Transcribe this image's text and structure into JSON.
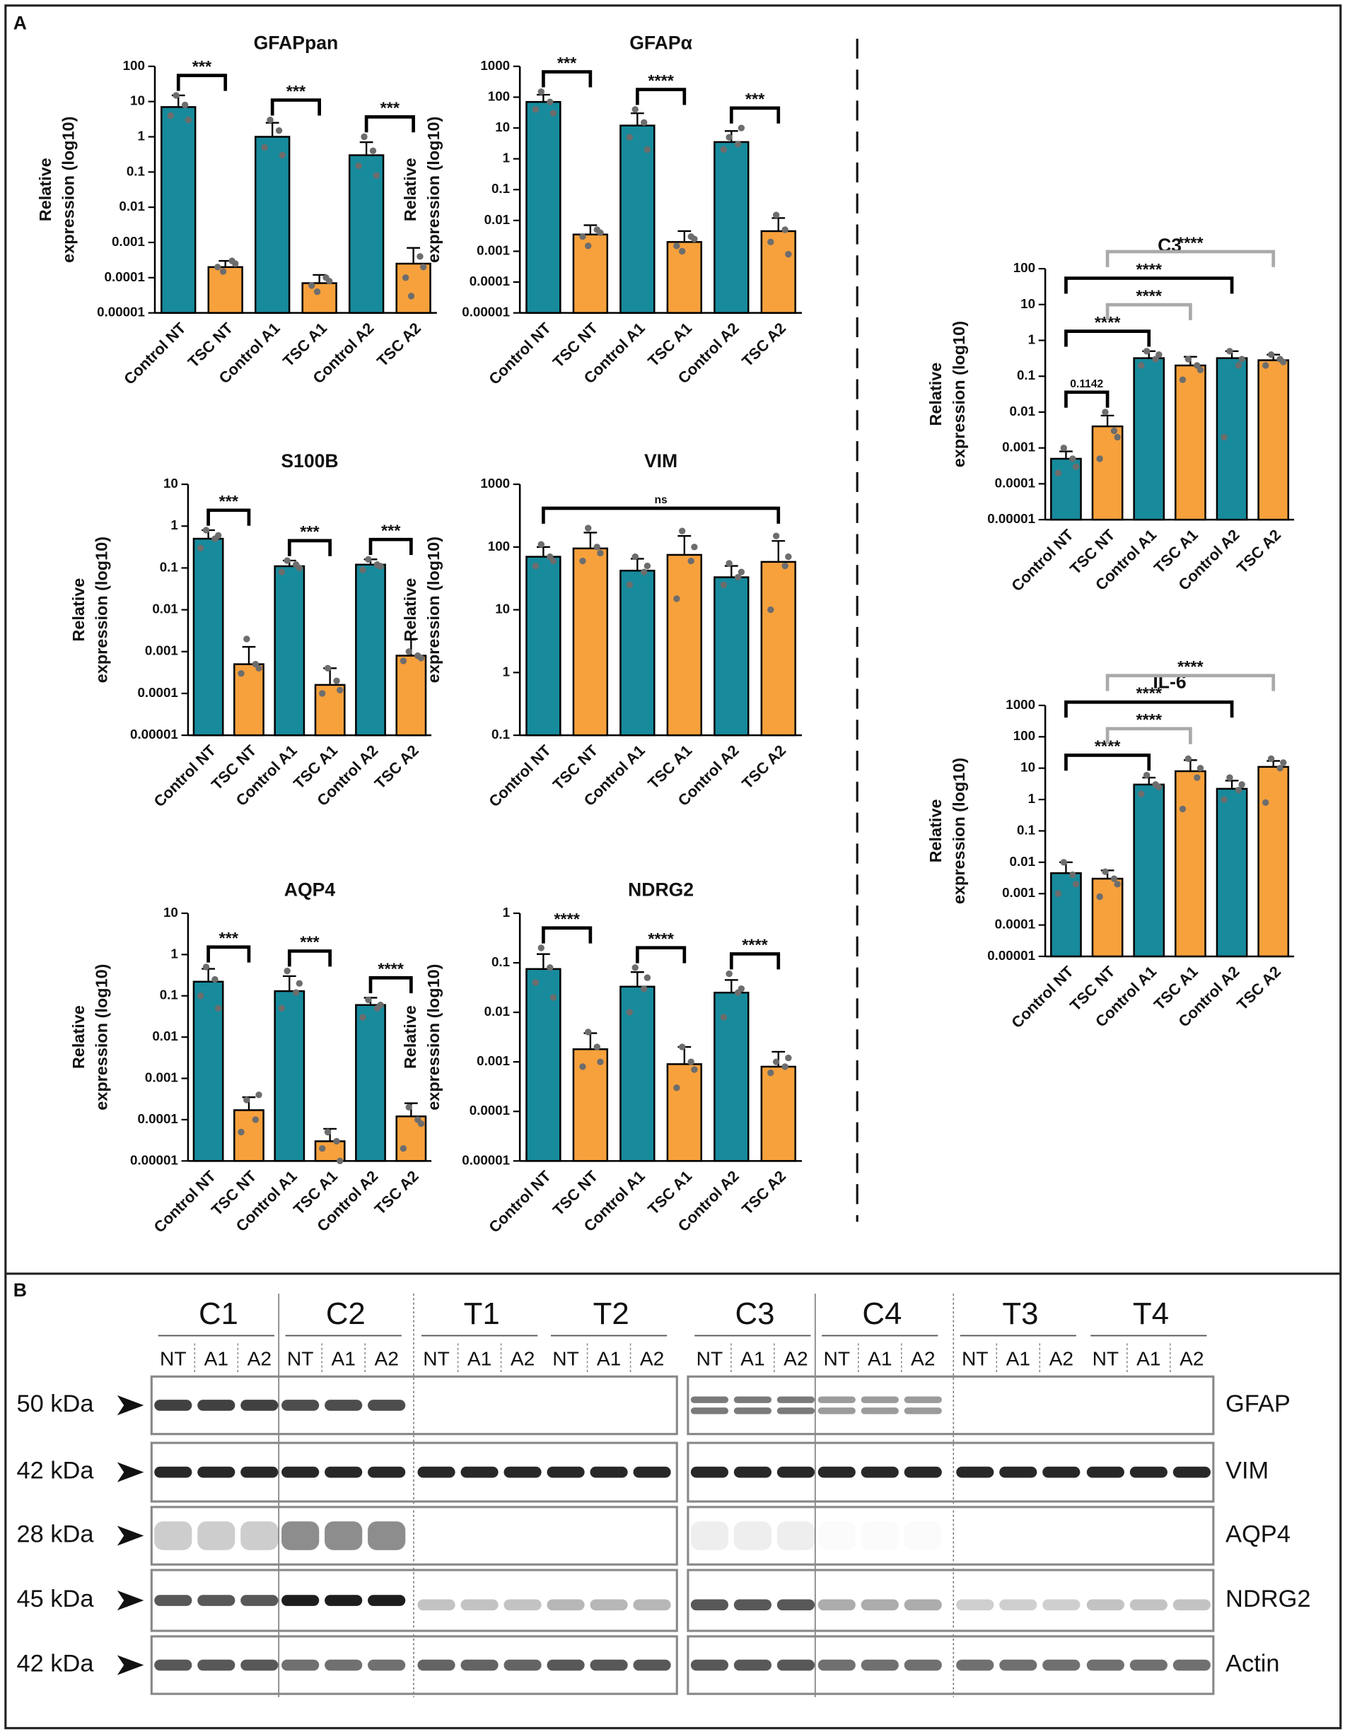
{
  "panel_labels": [
    "A",
    "B"
  ],
  "chart_data": [
    {
      "type": "bar",
      "title": "GFAPpan",
      "ylabel": [
        "Relative",
        "expression (log10)"
      ],
      "yscale": "log",
      "categories": [
        "Control NT",
        "TSC NT",
        "Control A1",
        "TSC A1",
        "Control A2",
        "TSC A2"
      ],
      "values": [
        7,
        0.0002,
        1,
        7e-05,
        0.3,
        0.00025
      ],
      "error_upper": [
        15,
        0.0003,
        2.5,
        0.00012,
        0.7,
        0.0007
      ],
      "points": [
        [
          4,
          8,
          15,
          3
        ],
        [
          0.0002,
          0.0003,
          0.00015,
          0.00025
        ],
        [
          0.5,
          1.5,
          3,
          0.3
        ],
        [
          6e-05,
          0.0001,
          4e-05,
          8e-05
        ],
        [
          0.15,
          0.4,
          1,
          0.08
        ],
        [
          0.0001,
          0.0004,
          3e-05,
          0.0002
        ]
      ],
      "colors": [
        "#178a9c",
        "#f7a13d",
        "#178a9c",
        "#f7a13d",
        "#178a9c",
        "#f7a13d"
      ],
      "ylim": [
        1e-05,
        100
      ],
      "yticks": [
        1e-05,
        0.0001,
        0.001,
        0.01,
        0.1,
        1,
        10,
        100
      ],
      "comparisons": [
        {
          "from": 0,
          "to": 1,
          "label": "***",
          "color": "#000"
        },
        {
          "from": 2,
          "to": 3,
          "label": "***",
          "color": "#000"
        },
        {
          "from": 4,
          "to": 5,
          "label": "***",
          "color": "#000"
        }
      ]
    },
    {
      "type": "bar",
      "title": "GFAPα",
      "ylabel": [
        "Relative",
        "expression (log10)"
      ],
      "yscale": "log",
      "categories": [
        "Control NT",
        "TSC NT",
        "Control A1",
        "TSC A1",
        "Control A2",
        "TSC A2"
      ],
      "values": [
        70,
        0.0035,
        12,
        0.002,
        3.5,
        0.0045
      ],
      "error_upper": [
        120,
        0.007,
        30,
        0.0045,
        8,
        0.012
      ],
      "points": [
        [
          40,
          70,
          150,
          30
        ],
        [
          0.003,
          0.005,
          0.0015,
          0.004
        ],
        [
          5,
          15,
          40,
          2
        ],
        [
          0.0015,
          0.003,
          0.001,
          0.0025
        ],
        [
          2,
          3,
          5,
          10
        ],
        [
          0.002,
          0.005,
          0.015,
          0.0008
        ]
      ],
      "colors": [
        "#178a9c",
        "#f7a13d",
        "#178a9c",
        "#f7a13d",
        "#178a9c",
        "#f7a13d"
      ],
      "ylim": [
        1e-05,
        1000
      ],
      "yticks": [
        1e-05,
        0.0001,
        0.001,
        0.01,
        0.1,
        1,
        10,
        100,
        1000
      ],
      "comparisons": [
        {
          "from": 0,
          "to": 1,
          "label": "***",
          "color": "#000"
        },
        {
          "from": 2,
          "to": 3,
          "label": "****",
          "color": "#000"
        },
        {
          "from": 4,
          "to": 5,
          "label": "***",
          "color": "#000"
        }
      ]
    },
    {
      "type": "bar",
      "title": "S100B",
      "ylabel": [
        "Relative",
        "expression (log10)"
      ],
      "yscale": "log",
      "categories": [
        "Control NT",
        "TSC NT",
        "Control A1",
        "TSC A1",
        "Control A2",
        "TSC A2"
      ],
      "values": [
        0.5,
        0.0005,
        0.11,
        0.00016,
        0.12,
        0.0008
      ],
      "error_upper": [
        0.8,
        0.0013,
        0.15,
        0.0004,
        0.16,
        0.002
      ],
      "points": [
        [
          0.3,
          0.5,
          0.8,
          0.6
        ],
        [
          0.0003,
          0.0005,
          0.002,
          0.0004
        ],
        [
          0.08,
          0.12,
          0.15,
          0.1
        ],
        [
          0.0001,
          0.0002,
          0.0004,
          0.00012
        ],
        [
          0.09,
          0.12,
          0.16,
          0.11
        ],
        [
          0.0006,
          0.0008,
          0.001,
          0.0007
        ]
      ],
      "colors": [
        "#178a9c",
        "#f7a13d",
        "#178a9c",
        "#f7a13d",
        "#178a9c",
        "#f7a13d"
      ],
      "ylim": [
        1e-05,
        10
      ],
      "yticks": [
        1e-05,
        0.0001,
        0.001,
        0.01,
        0.1,
        1,
        10
      ],
      "comparisons": [
        {
          "from": 0,
          "to": 1,
          "label": "***",
          "color": "#000"
        },
        {
          "from": 2,
          "to": 3,
          "label": "***",
          "color": "#000"
        },
        {
          "from": 4,
          "to": 5,
          "label": "***",
          "color": "#000"
        }
      ]
    },
    {
      "type": "bar",
      "title": "VIM",
      "ylabel": [
        "Relative",
        "expression (log10)"
      ],
      "yscale": "log",
      "categories": [
        "Control NT",
        "TSC NT",
        "Control A1",
        "TSC A1",
        "Control A2",
        "TSC A2"
      ],
      "values": [
        70,
        95,
        42,
        75,
        33,
        58
      ],
      "error_upper": [
        100,
        170,
        65,
        150,
        50,
        125
      ],
      "points": [
        [
          50,
          70,
          110,
          60
        ],
        [
          60,
          100,
          200,
          80
        ],
        [
          25,
          40,
          70,
          50
        ],
        [
          15,
          60,
          180,
          100
        ],
        [
          25,
          33,
          55,
          40
        ],
        [
          10,
          50,
          150,
          70
        ]
      ],
      "colors": [
        "#178a9c",
        "#f7a13d",
        "#178a9c",
        "#f7a13d",
        "#178a9c",
        "#f7a13d"
      ],
      "ylim": [
        0.1,
        1000
      ],
      "yticks": [
        0.1,
        1,
        10,
        100,
        1000
      ],
      "comparisons": [
        {
          "from": 0,
          "to": 5,
          "label": "ns",
          "color": "#000"
        }
      ]
    },
    {
      "type": "bar",
      "title": "AQP4",
      "ylabel": [
        "Relative",
        "expression (log10)"
      ],
      "yscale": "log",
      "categories": [
        "Control NT",
        "TSC NT",
        "Control A1",
        "TSC A1",
        "Control A2",
        "TSC A2"
      ],
      "values": [
        0.22,
        0.00017,
        0.13,
        3e-05,
        0.06,
        0.00012
      ],
      "error_upper": [
        0.45,
        0.00035,
        0.3,
        6e-05,
        0.09,
        0.00025
      ],
      "points": [
        [
          0.1,
          0.25,
          0.5,
          0.05
        ],
        [
          5e-05,
          0.0001,
          0.0003,
          0.0004
        ],
        [
          0.05,
          0.12,
          0.4,
          0.2
        ],
        [
          2e-05,
          3e-05,
          5e-05,
          1e-05
        ],
        [
          0.03,
          0.05,
          0.08,
          0.06
        ],
        [
          2e-05,
          0.0001,
          0.0002,
          8e-05
        ]
      ],
      "colors": [
        "#178a9c",
        "#f7a13d",
        "#178a9c",
        "#f7a13d",
        "#178a9c",
        "#f7a13d"
      ],
      "ylim": [
        1e-05,
        10
      ],
      "yticks": [
        1e-05,
        0.0001,
        0.001,
        0.01,
        0.1,
        1,
        10
      ],
      "comparisons": [
        {
          "from": 0,
          "to": 1,
          "label": "***",
          "color": "#000"
        },
        {
          "from": 2,
          "to": 3,
          "label": "***",
          "color": "#000"
        },
        {
          "from": 4,
          "to": 5,
          "label": "****",
          "color": "#000"
        }
      ]
    },
    {
      "type": "bar",
      "title": "NDRG2",
      "ylabel": [
        "Relative",
        "expression (log10)"
      ],
      "yscale": "log",
      "categories": [
        "Control NT",
        "TSC NT",
        "Control A1",
        "TSC A1",
        "Control A2",
        "TSC A2"
      ],
      "values": [
        0.075,
        0.0018,
        0.033,
        0.0009,
        0.025,
        0.0008
      ],
      "error_upper": [
        0.15,
        0.0038,
        0.065,
        0.002,
        0.045,
        0.0016
      ],
      "points": [
        [
          0.04,
          0.08,
          0.2,
          0.02
        ],
        [
          0.0008,
          0.002,
          0.004,
          0.001
        ],
        [
          0.01,
          0.03,
          0.08,
          0.05
        ],
        [
          0.0003,
          0.001,
          0.002,
          0.0007
        ],
        [
          0.008,
          0.025,
          0.06,
          0.03
        ],
        [
          0.0006,
          0.0008,
          0.001,
          0.0012
        ]
      ],
      "colors": [
        "#178a9c",
        "#f7a13d",
        "#178a9c",
        "#f7a13d",
        "#178a9c",
        "#f7a13d"
      ],
      "ylim": [
        1e-05,
        1
      ],
      "yticks": [
        1e-05,
        0.0001,
        0.001,
        0.01,
        0.1,
        1
      ],
      "comparisons": [
        {
          "from": 0,
          "to": 1,
          "label": "****",
          "color": "#000"
        },
        {
          "from": 2,
          "to": 3,
          "label": "****",
          "color": "#000"
        },
        {
          "from": 4,
          "to": 5,
          "label": "****",
          "color": "#000"
        }
      ]
    },
    {
      "type": "bar",
      "title": "C3",
      "ylabel": [
        "Relative",
        "expression (log10)"
      ],
      "yscale": "log",
      "categories": [
        "Control NT",
        "TSC NT",
        "Control A1",
        "TSC A1",
        "Control A2",
        "TSC A2"
      ],
      "values": [
        0.0005,
        0.004,
        0.32,
        0.2,
        0.32,
        0.28
      ],
      "error_upper": [
        0.0008,
        0.008,
        0.5,
        0.35,
        0.5,
        0.4
      ],
      "points": [
        [
          0.0002,
          0.0005,
          0.001,
          0.0003
        ],
        [
          0.0005,
          0.003,
          0.01,
          0.002
        ],
        [
          0.2,
          0.3,
          0.5,
          0.4
        ],
        [
          0.08,
          0.2,
          0.3,
          0.15
        ],
        [
          0.002,
          0.2,
          0.5,
          0.3
        ],
        [
          0.2,
          0.3,
          0.4,
          0.25
        ]
      ],
      "colors": [
        "#178a9c",
        "#f7a13d",
        "#178a9c",
        "#f7a13d",
        "#178a9c",
        "#f7a13d"
      ],
      "ylim": [
        1e-05,
        100
      ],
      "yticks": [
        1e-05,
        0.0001,
        0.001,
        0.01,
        0.1,
        1,
        10,
        100
      ],
      "comparisons": [
        {
          "from": 0,
          "to": 1,
          "label": "0.1142",
          "color": "#000"
        },
        {
          "from": 0,
          "to": 2,
          "label": "****",
          "color": "#000"
        },
        {
          "from": 0,
          "to": 4,
          "label": "****",
          "color": "#000"
        },
        {
          "from": 1,
          "to": 3,
          "label": "****",
          "color": "#aaa"
        },
        {
          "from": 1,
          "to": 5,
          "label": "****",
          "color": "#aaa"
        }
      ]
    },
    {
      "type": "bar",
      "title": "IL-6",
      "ylabel": [
        "Relative",
        "expression (log10)"
      ],
      "yscale": "log",
      "categories": [
        "Control NT",
        "TSC NT",
        "Control A1",
        "TSC A1",
        "Control A2",
        "TSC A2"
      ],
      "values": [
        0.0045,
        0.003,
        3,
        8,
        2.2,
        11
      ],
      "error_upper": [
        0.01,
        0.0055,
        5,
        18,
        4,
        17
      ],
      "points": [
        [
          0.001,
          0.004,
          0.01,
          0.002
        ],
        [
          0.0008,
          0.003,
          0.005,
          0.002
        ],
        [
          1.5,
          3,
          6,
          2.5
        ],
        [
          0.5,
          5,
          20,
          10
        ],
        [
          1,
          2,
          5,
          3
        ],
        [
          0.8,
          10,
          20,
          15
        ]
      ],
      "colors": [
        "#178a9c",
        "#f7a13d",
        "#178a9c",
        "#f7a13d",
        "#178a9c",
        "#f7a13d"
      ],
      "ylim": [
        1e-05,
        1000
      ],
      "yticks": [
        1e-05,
        0.0001,
        0.001,
        0.01,
        0.1,
        1,
        10,
        100,
        1000
      ],
      "comparisons": [
        {
          "from": 0,
          "to": 2,
          "label": "****",
          "color": "#000"
        },
        {
          "from": 0,
          "to": 4,
          "label": "****",
          "color": "#000"
        },
        {
          "from": 1,
          "to": 3,
          "label": "****",
          "color": "#aaa"
        },
        {
          "from": 1,
          "to": 5,
          "label": "****",
          "color": "#aaa"
        }
      ]
    }
  ],
  "blot": {
    "groups": [
      "C1",
      "C2",
      "T1",
      "T2",
      "C3",
      "C4",
      "T3",
      "T4"
    ],
    "lanes": [
      "NT",
      "A1",
      "A2"
    ],
    "sizes": [
      "50 kDa",
      "42 kDa",
      "28 kDa",
      "45 kDa",
      "42 kDa"
    ],
    "proteins": [
      "GFAP",
      "VIM",
      "AQP4",
      "NDRG2",
      "Actin"
    ]
  }
}
